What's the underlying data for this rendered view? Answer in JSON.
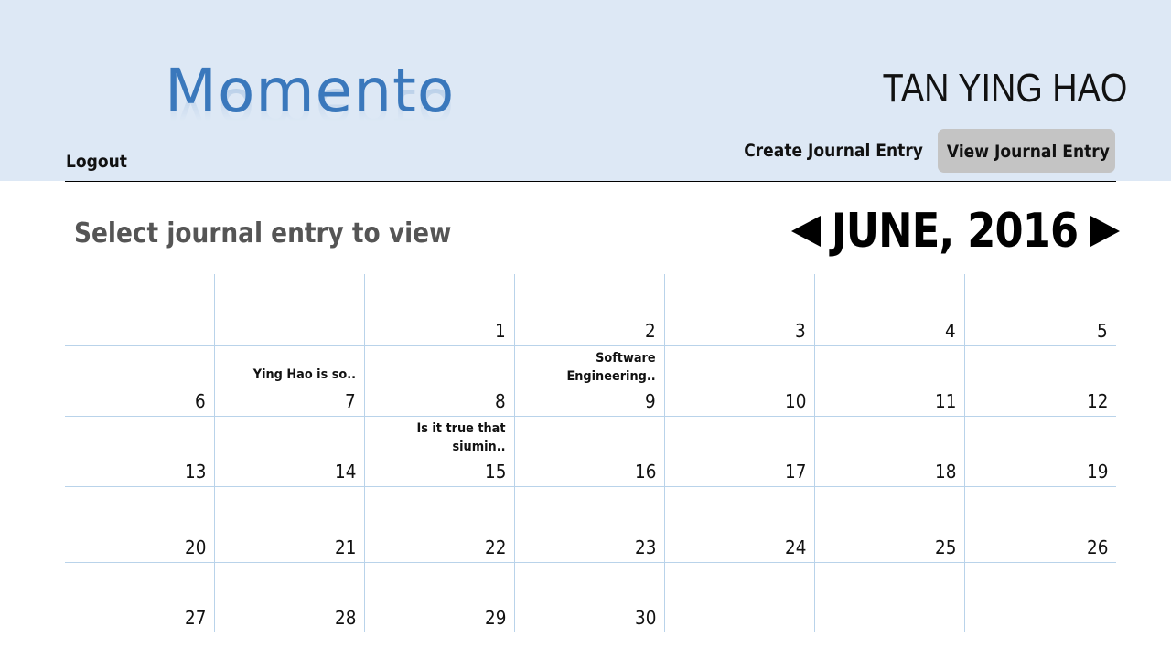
{
  "header": {
    "logo": "Momento",
    "username": "TAN YING HAO",
    "logout_label": "Logout",
    "nav": {
      "create_label": "Create Journal Entry",
      "view_label": "View Journal Entry"
    },
    "background_color": "#dde8f5",
    "active_nav_color": "#c4c4c4"
  },
  "main": {
    "section_title": "Select journal entry to view",
    "month_label": "JUNE, 2016",
    "prev_icon": "triangle-left-icon",
    "next_icon": "triangle-right-icon"
  },
  "calendar": {
    "weeks": [
      [
        {
          "day": "",
          "entry": ""
        },
        {
          "day": "",
          "entry": ""
        },
        {
          "day": "1",
          "entry": ""
        },
        {
          "day": "2",
          "entry": ""
        },
        {
          "day": "3",
          "entry": ""
        },
        {
          "day": "4",
          "entry": ""
        },
        {
          "day": "5",
          "entry": ""
        }
      ],
      [
        {
          "day": "6",
          "entry": ""
        },
        {
          "day": "7",
          "entry": "Ying Hao is so.."
        },
        {
          "day": "8",
          "entry": ""
        },
        {
          "day": "9",
          "entry": "Software\nEngineering.."
        },
        {
          "day": "10",
          "entry": ""
        },
        {
          "day": "11",
          "entry": ""
        },
        {
          "day": "12",
          "entry": ""
        }
      ],
      [
        {
          "day": "13",
          "entry": ""
        },
        {
          "day": "14",
          "entry": ""
        },
        {
          "day": "15",
          "entry": "Is it true that\nsiumin.."
        },
        {
          "day": "16",
          "entry": ""
        },
        {
          "day": "17",
          "entry": ""
        },
        {
          "day": "18",
          "entry": ""
        },
        {
          "day": "19",
          "entry": ""
        }
      ],
      [
        {
          "day": "20",
          "entry": ""
        },
        {
          "day": "21",
          "entry": ""
        },
        {
          "day": "22",
          "entry": ""
        },
        {
          "day": "23",
          "entry": ""
        },
        {
          "day": "24",
          "entry": ""
        },
        {
          "day": "25",
          "entry": ""
        },
        {
          "day": "26",
          "entry": ""
        }
      ],
      [
        {
          "day": "27",
          "entry": ""
        },
        {
          "day": "28",
          "entry": ""
        },
        {
          "day": "29",
          "entry": ""
        },
        {
          "day": "30",
          "entry": ""
        },
        {
          "day": "",
          "entry": ""
        },
        {
          "day": "",
          "entry": ""
        },
        {
          "day": "",
          "entry": ""
        }
      ]
    ],
    "grid_line_color": "#b9d3ea"
  }
}
